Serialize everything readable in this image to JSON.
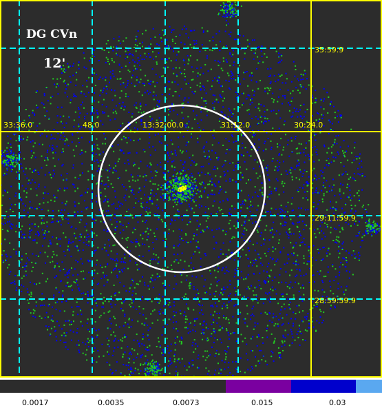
{
  "image": {
    "object_name": "DG CVn",
    "scale_label": "12'",
    "ra_labels": [
      "33:36.0",
      "48.0",
      "13:32:00.0",
      "31:12.0",
      "30:24.0"
    ],
    "dec_labels": [
      "35:59.9",
      "29:11:59.9",
      "28:59:59.9"
    ],
    "colors": {
      "background": "#2c2c2c",
      "ra_dec_axes": "#ffff00",
      "grid": "#00ffff",
      "circle": "#ffffff",
      "counts_low": "#0000ff",
      "counts_mid": "#22cc22",
      "counts_high": "#ffff00"
    }
  },
  "colorbar": {
    "ticks": [
      "0.0017",
      "0.0035",
      "0.0073",
      "0.015",
      "0.03"
    ],
    "colors": [
      "#2c2c2c",
      "#7a00a0",
      "#0000cc",
      "#5aa8f0"
    ]
  }
}
